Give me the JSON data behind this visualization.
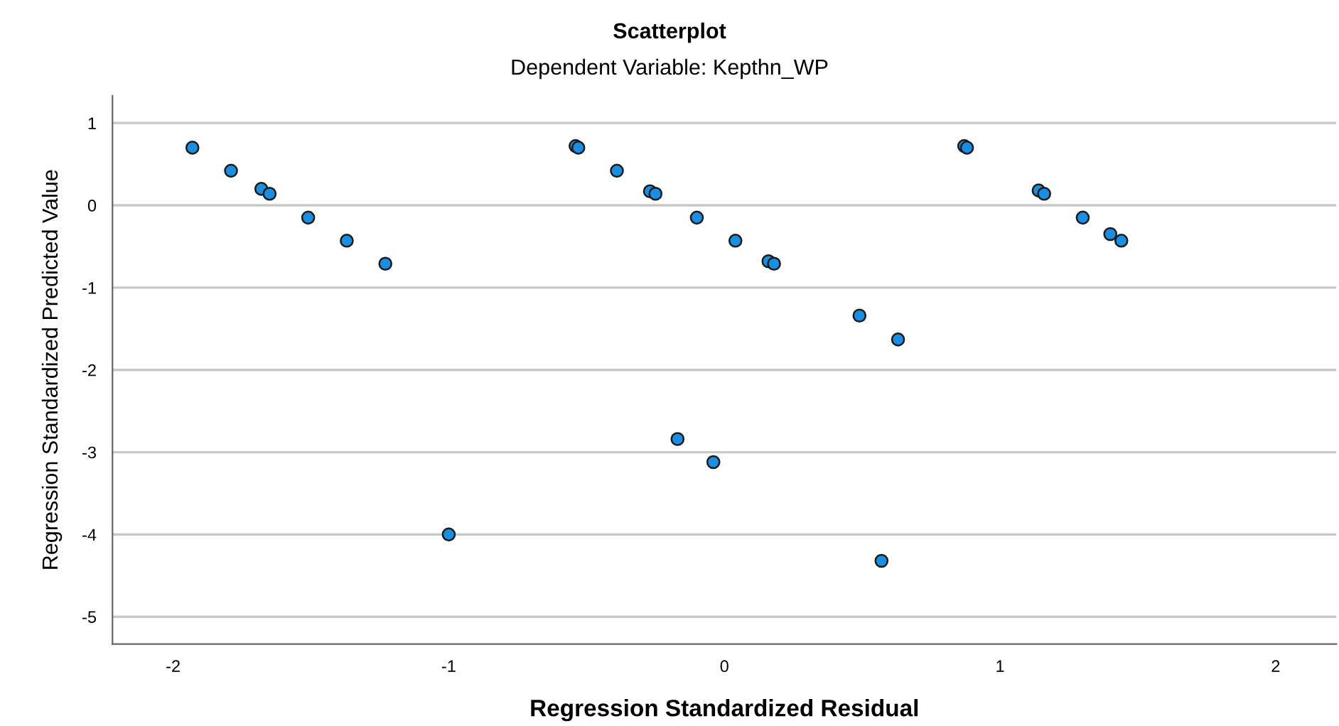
{
  "chart_data": {
    "type": "scatter",
    "title": "Scatterplot",
    "subtitle": "Dependent Variable: Kepthn_WP",
    "xlabel": "Regression Standardized Residual",
    "ylabel": "Regression Standardized Predicted Value",
    "series": [
      {
        "color": "#1a8ee0",
        "x": [
          -1.93,
          -1.79,
          -1.68,
          -1.65,
          -1.51,
          -1.37,
          -1.23,
          -1.0,
          -0.54,
          -0.53,
          -0.39,
          -0.27,
          -0.25,
          -0.17,
          -0.1,
          -0.04,
          0.04,
          0.16,
          0.18,
          0.49,
          0.57,
          0.63,
          0.87,
          0.88,
          1.14,
          1.16,
          1.3,
          1.4,
          1.44
        ],
        "values": [
          0.7,
          0.42,
          0.2,
          0.14,
          -0.15,
          -0.43,
          -0.71,
          -4.0,
          0.72,
          0.7,
          0.42,
          0.17,
          0.14,
          -2.84,
          -0.15,
          -3.12,
          -0.43,
          -0.68,
          -0.71,
          -1.34,
          -4.32,
          -1.63,
          0.72,
          0.7,
          0.18,
          0.14,
          -0.15,
          -0.35,
          -0.43
        ]
      }
    ],
    "xlim": [
      -2.22,
      2.22
    ],
    "ylim": [
      -5.33,
      1.33
    ],
    "xticks": [
      -2,
      -1,
      0,
      1,
      2
    ],
    "yticks": [
      -5,
      -4,
      -3,
      -2,
      -1,
      0,
      1
    ],
    "grid": "y",
    "marker": "circle",
    "legend": false
  }
}
